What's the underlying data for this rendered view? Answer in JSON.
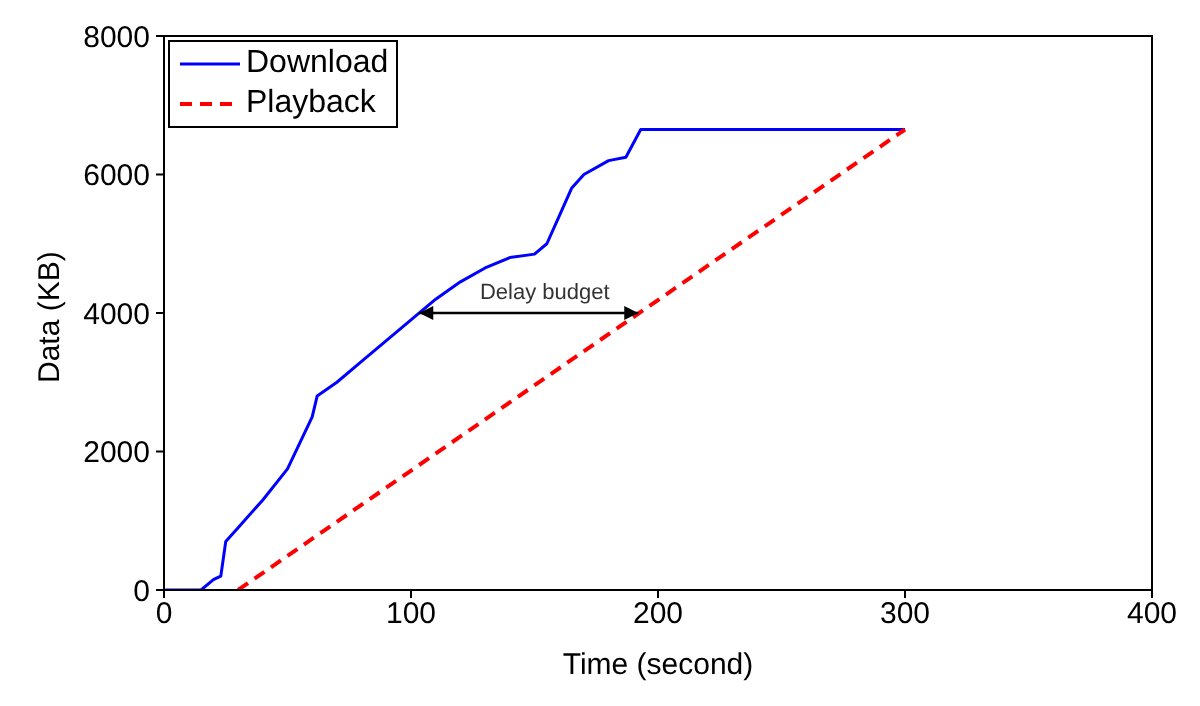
{
  "chart_data": {
    "type": "line",
    "xlabel": "Time (second)",
    "ylabel": "Data (KB)",
    "xlim": [
      0,
      400
    ],
    "xticks": [
      0,
      100,
      200,
      300,
      400
    ],
    "ylim": [
      0,
      8000
    ],
    "yticks": [
      0,
      2000,
      4000,
      6000,
      8000
    ],
    "grid": false,
    "legend": "top left",
    "marker": "none",
    "series": [
      {
        "name": "Download",
        "color": "#0000ff",
        "line_style": "solid",
        "x": [
          0,
          15,
          20,
          23,
          25,
          30,
          40,
          50,
          60,
          62,
          70,
          80,
          90,
          100,
          110,
          120,
          130,
          140,
          150,
          155,
          160,
          165,
          170,
          180,
          187,
          193,
          300
        ],
        "values": [
          0,
          0,
          150,
          200,
          700,
          900,
          1300,
          1750,
          2500,
          2800,
          3000,
          3300,
          3600,
          3900,
          4200,
          4450,
          4650,
          4800,
          4850,
          5000,
          5400,
          5800,
          6000,
          6200,
          6250,
          6650,
          6650
        ]
      },
      {
        "name": "Playback",
        "color": "#ff0000",
        "line_style": "dashed",
        "x": [
          30,
          300
        ],
        "values": [
          0,
          6650
        ]
      }
    ],
    "annotations": [
      {
        "text": "Delay budget",
        "x": 192,
        "y": 4000
      }
    ]
  }
}
